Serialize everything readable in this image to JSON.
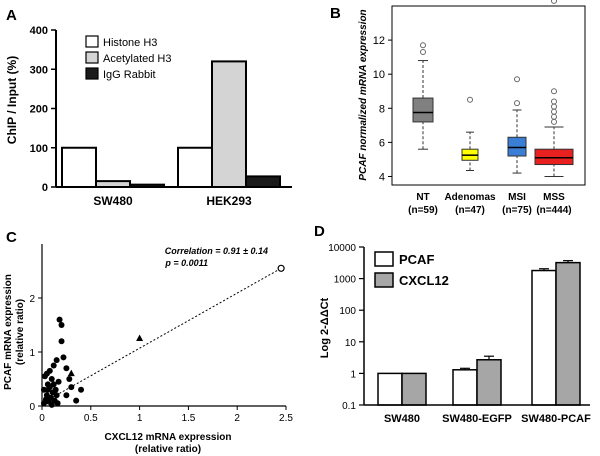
{
  "chart_data": [
    {
      "id": "A",
      "type": "bar",
      "panel_label": "A",
      "ylabel": "ChIP / Input (%)",
      "ylim": [
        0,
        400
      ],
      "yticks": [
        "0",
        "100",
        "200",
        "300",
        "400"
      ],
      "categories": [
        "SW480",
        "HEK293"
      ],
      "series": [
        {
          "name": "Histone H3",
          "color": "#ffffff",
          "values": [
            100,
            100
          ]
        },
        {
          "name": "Acetylated H3",
          "color": "#d4d4d4",
          "values": [
            15,
            320
          ]
        },
        {
          "name": "IgG  Rabbit",
          "color": "#1a1a1a",
          "values": [
            6,
            27
          ]
        }
      ]
    },
    {
      "id": "B",
      "type": "box",
      "panel_label": "B",
      "ylabel": "PCAF normalized mRNA expression",
      "ylim": [
        3.5,
        14
      ],
      "yticks": [
        "4",
        "6",
        "8",
        "10",
        "12"
      ],
      "categories": [
        "NT",
        "Adenomas",
        "MSI",
        "MSS"
      ],
      "counts": [
        "(n=59)",
        "(n=47)",
        "(n=75)",
        "(n=444)"
      ],
      "boxes": [
        {
          "q1": 7.2,
          "median": 7.75,
          "q3": 8.6,
          "whisker_low": 5.6,
          "whisker_high": 10.8,
          "outliers": [
            11.3,
            11.7
          ],
          "color": "#808080"
        },
        {
          "q1": 4.95,
          "median": 5.25,
          "q3": 5.6,
          "whisker_low": 4.35,
          "whisker_high": 6.6,
          "outliers": [
            8.5
          ],
          "color": "#ffff00"
        },
        {
          "q1": 5.2,
          "median": 5.7,
          "q3": 6.3,
          "whisker_low": 4.2,
          "whisker_high": 7.9,
          "outliers": [
            8.3,
            9.7
          ],
          "color": "#3a7fd5"
        },
        {
          "q1": 4.7,
          "median": 5.1,
          "q3": 5.6,
          "whisker_low": 4.0,
          "whisker_high": 6.9,
          "outliers": [
            7.2,
            7.5,
            7.8,
            8.1,
            8.4,
            9.0,
            14.3
          ],
          "color": "#e82020"
        }
      ]
    },
    {
      "id": "C",
      "type": "scatter",
      "panel_label": "C",
      "xlabel": "CXCL12 mRNA expression",
      "xlabel2": "(relative ratio)",
      "ylabel": "PCAF  mRNA expression",
      "ylabel2": "(relative ratio)",
      "xlim": [
        0,
        2.5
      ],
      "ylim": [
        0,
        3
      ],
      "xticks": [
        "0",
        "0.5",
        "1",
        "1.5",
        "2",
        "2.5"
      ],
      "yticks": [
        "0",
        "1",
        "2"
      ],
      "annotation": "Correlation = 0.91 ± 0.14",
      "annotation2": "p = 0.0011",
      "trend": {
        "x0": 0,
        "y0": 0.05,
        "x1": 2.45,
        "y1": 2.55
      },
      "points": [
        {
          "x": 0.02,
          "y": 0.05
        },
        {
          "x": 0.04,
          "y": 0.12
        },
        {
          "x": 0.05,
          "y": 0.2
        },
        {
          "x": 0.06,
          "y": 0.3
        },
        {
          "x": 0.07,
          "y": 0.08
        },
        {
          "x": 0.08,
          "y": 0.35
        },
        {
          "x": 0.09,
          "y": 0.15
        },
        {
          "x": 0.1,
          "y": 0.02
        },
        {
          "x": 0.11,
          "y": 0.25
        },
        {
          "x": 0.12,
          "y": 0.4
        },
        {
          "x": 0.13,
          "y": 0.1
        },
        {
          "x": 0.14,
          "y": 0.3
        },
        {
          "x": 0.15,
          "y": 0.2
        },
        {
          "x": 0.16,
          "y": 0.05
        },
        {
          "x": 0.17,
          "y": 0.45
        },
        {
          "x": 0.18,
          "y": 1.6
        },
        {
          "x": 0.2,
          "y": 1.5
        },
        {
          "x": 0.2,
          "y": 1.2
        },
        {
          "x": 0.22,
          "y": 0.9
        },
        {
          "x": 0.25,
          "y": 0.7
        },
        {
          "x": 0.28,
          "y": 0.5
        },
        {
          "x": 0.3,
          "y": 0.35
        },
        {
          "x": 0.35,
          "y": 0.1
        },
        {
          "x": 0.4,
          "y": 0.3
        },
        {
          "x": 0.03,
          "y": 0.55
        },
        {
          "x": 0.05,
          "y": 0.6
        },
        {
          "x": 0.08,
          "y": 0.65
        },
        {
          "x": 0.12,
          "y": 0.75
        },
        {
          "x": 0.1,
          "y": 0.5
        },
        {
          "x": 0.15,
          "y": 0.85
        },
        {
          "x": 0.25,
          "y": 0.2
        },
        {
          "x": 0.06,
          "y": 0.4
        },
        {
          "x": 0.02,
          "y": 0.3
        }
      ],
      "triangles": [
        {
          "x": 1.0,
          "y": 1.25
        },
        {
          "x": 0.3,
          "y": 0.6
        }
      ],
      "open_points": [
        {
          "x": 2.45,
          "y": 2.55
        }
      ]
    },
    {
      "id": "D",
      "type": "bar",
      "panel_label": "D",
      "ylabel": "Log 2-ΔΔCt",
      "yscale": "log",
      "ylim": [
        0.1,
        10000
      ],
      "yticks": [
        "0.1",
        "1",
        "10",
        "100",
        "1000",
        "10000"
      ],
      "categories": [
        "SW480",
        "SW480-EGFP",
        "SW480-PCAF"
      ],
      "series": [
        {
          "name": "PCAF",
          "color": "#ffffff",
          "values": [
            1,
            1.3,
            1800
          ],
          "errors": [
            0,
            0.15,
            250
          ]
        },
        {
          "name": "CXCL12",
          "color": "#a6a6a6",
          "values": [
            1,
            2.7,
            3200
          ],
          "errors": [
            0,
            0.8,
            500
          ]
        }
      ]
    }
  ]
}
